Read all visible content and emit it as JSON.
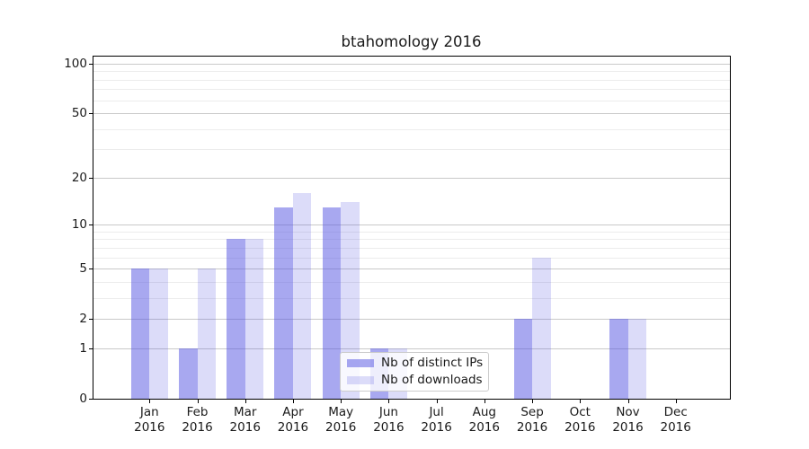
{
  "title": "btahomology 2016",
  "chart_data": {
    "type": "bar",
    "title": "btahomology 2016",
    "categories": [
      "Jan 2016",
      "Feb 2016",
      "Mar 2016",
      "Apr 2016",
      "May 2016",
      "Jun 2016",
      "Jul 2016",
      "Aug 2016",
      "Sep 2016",
      "Oct 2016",
      "Nov 2016",
      "Dec 2016"
    ],
    "series": [
      {
        "name": "Nb of distinct IPs",
        "values": [
          5,
          1,
          8,
          13,
          13,
          1,
          0,
          0,
          2,
          0,
          2,
          0
        ]
      },
      {
        "name": "Nb of downloads",
        "values": [
          5,
          5,
          8,
          16,
          14,
          1,
          0,
          0,
          6,
          0,
          2,
          0
        ]
      }
    ],
    "xlabel": "",
    "ylabel": "",
    "yscale": "log10(1+v)",
    "yticks": [
      0,
      1,
      2,
      5,
      10,
      20,
      50,
      100
    ],
    "ytick_labels": [
      "0",
      "1",
      "2",
      "5",
      "10",
      "20",
      "50",
      "100"
    ],
    "minor_grid_values": [
      3,
      4,
      6,
      7,
      8,
      9,
      30,
      40,
      60,
      70,
      80,
      90
    ],
    "ylim": [
      0,
      112
    ],
    "grid": "horizontal",
    "legend_position": "lower-center-inside"
  },
  "legend": {
    "items": [
      {
        "label": "Nb of distinct IPs",
        "color": "rgba(81,81,225,0.5)"
      },
      {
        "label": "Nb of downloads",
        "color": "rgba(81,81,225,0.2)"
      }
    ]
  },
  "colors": {
    "bar_distinct_ips": "rgba(81,81,225,0.5)",
    "bar_downloads": "rgba(81,81,225,0.2)",
    "grid_major": "#c9c9c9",
    "grid_minor": "#ececec",
    "axis": "#000000",
    "text": "#1a1a1a",
    "legend_border": "#cccccc",
    "background": "#ffffff"
  }
}
